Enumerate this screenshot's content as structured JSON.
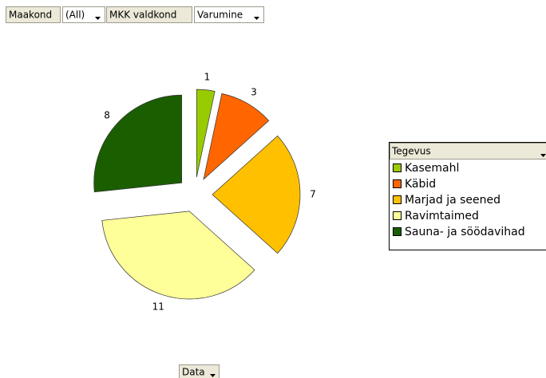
{
  "chart_data": {
    "type": "pie",
    "page_fields": [
      {
        "name": "Maakond",
        "value": "(All)"
      },
      {
        "name": "MKK valdkond",
        "value": "Varumine"
      }
    ],
    "legend_title": "Tegevus",
    "data_field": "Data",
    "exploded": true,
    "series": [
      {
        "name": "Kasemahl",
        "color": "#99cc00",
        "values": [
          1
        ]
      },
      {
        "name": "Käbid",
        "color": "#ff6600",
        "values": [
          3
        ]
      },
      {
        "name": "Marjad ja seened",
        "color": "#ffc000",
        "values": [
          7
        ]
      },
      {
        "name": "Ravimtaimed",
        "color": "#ffff99",
        "values": [
          11
        ]
      },
      {
        "name": "Sauna- ja söödavihad",
        "color": "#1a5e00",
        "values": [
          8
        ]
      }
    ]
  }
}
